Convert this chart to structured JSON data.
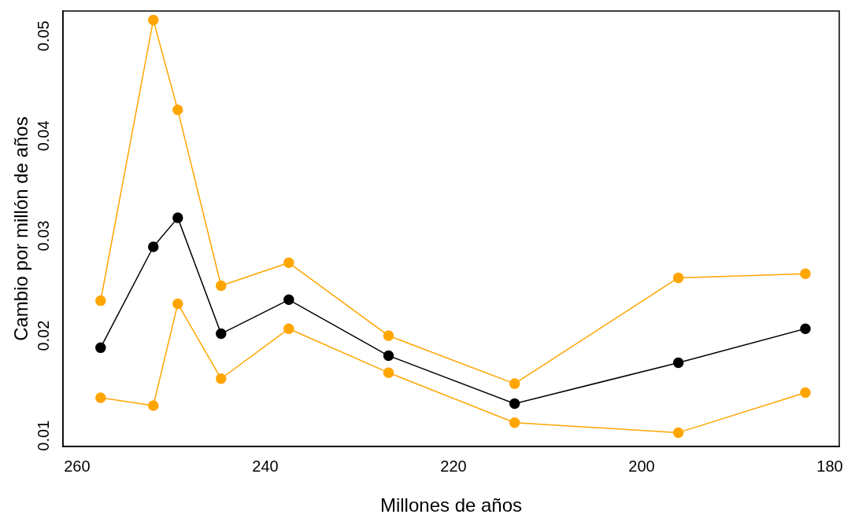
{
  "chart_data": {
    "type": "line",
    "xlabel": "Millones de años",
    "ylabel": "Cambio por millón de años",
    "x": [
      257.5,
      251.9,
      249.3,
      244.7,
      237.5,
      226.9,
      213.5,
      196.1,
      182.6
    ],
    "series": [
      {
        "color": "#ffa500",
        "values": [
          0.0235,
          0.0516,
          0.0426,
          0.025,
          0.0273,
          0.02,
          0.0152,
          0.0258,
          0.0262
        ]
      },
      {
        "color": "#ffa500",
        "values": [
          0.0138,
          0.013,
          0.0232,
          0.0157,
          0.0207,
          0.0163,
          0.0113,
          0.0103,
          0.0143
        ]
      },
      {
        "color": "#000000",
        "values": [
          0.0188,
          0.0289,
          0.0318,
          0.0202,
          0.0236,
          0.018,
          0.0132,
          0.0173,
          0.0207
        ]
      }
    ],
    "xlim": [
      261.5,
      179
    ],
    "xticks": [
      260,
      240,
      220,
      200,
      180
    ],
    "ylim": [
      0.0089,
      0.0525
    ],
    "yticks": [
      0.01,
      0.02,
      0.03,
      0.04,
      0.05
    ],
    "grid": false,
    "legend": false,
    "marker": "circle",
    "line_style": "solid"
  }
}
